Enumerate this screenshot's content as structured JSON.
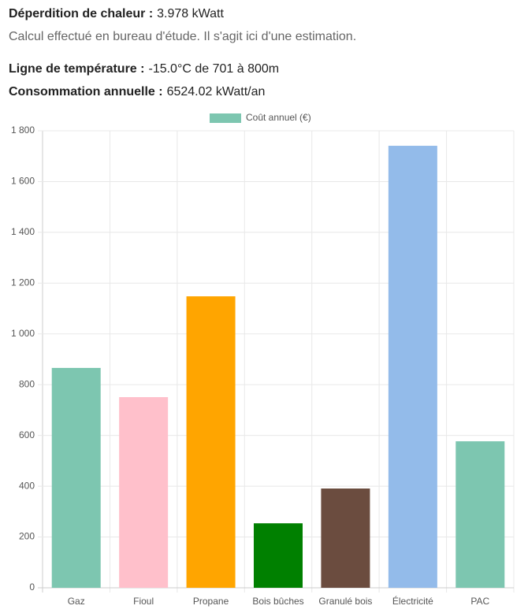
{
  "info": {
    "heat_loss": {
      "label": "Déperdition de chaleur :",
      "value": "3.978 kWatt"
    },
    "note": "Calcul effectué en bureau d'étude. Il s'agit ici d'une estimation.",
    "temperature_line": {
      "label": "Ligne de température :",
      "value": "-15.0°C de 701 à 800m"
    },
    "annual_consumption": {
      "label": "Consommation annuelle :",
      "value": "6524.02 kWatt/an"
    }
  },
  "chart_data": {
    "type": "bar",
    "categories": [
      "Gaz",
      "Fioul",
      "Propane",
      "Bois bûches",
      "Granulé bois",
      "Électricité",
      "PAC"
    ],
    "series": [
      {
        "name": "Coût annuel (€)",
        "color": "#7dc6b0",
        "values": [
          866,
          751,
          1148,
          254,
          391,
          1741,
          577
        ],
        "colors": [
          "#7dc6b0",
          "#ffc0cb",
          "#ffa500",
          "#008000",
          "#6b4c3f",
          "#93bbea",
          "#7dc6b0"
        ]
      }
    ],
    "ylim": [
      0,
      1800
    ],
    "yticks": [
      0,
      200,
      400,
      600,
      800,
      {
        "value": 1000,
        "label": "1 000"
      },
      {
        "value": 1200,
        "label": "1 200"
      },
      {
        "value": 1400,
        "label": "1 400"
      },
      {
        "value": 1600,
        "label": "1 600"
      },
      {
        "value": 1800,
        "label": "1 800"
      }
    ],
    "grid": true,
    "legend": "top"
  }
}
